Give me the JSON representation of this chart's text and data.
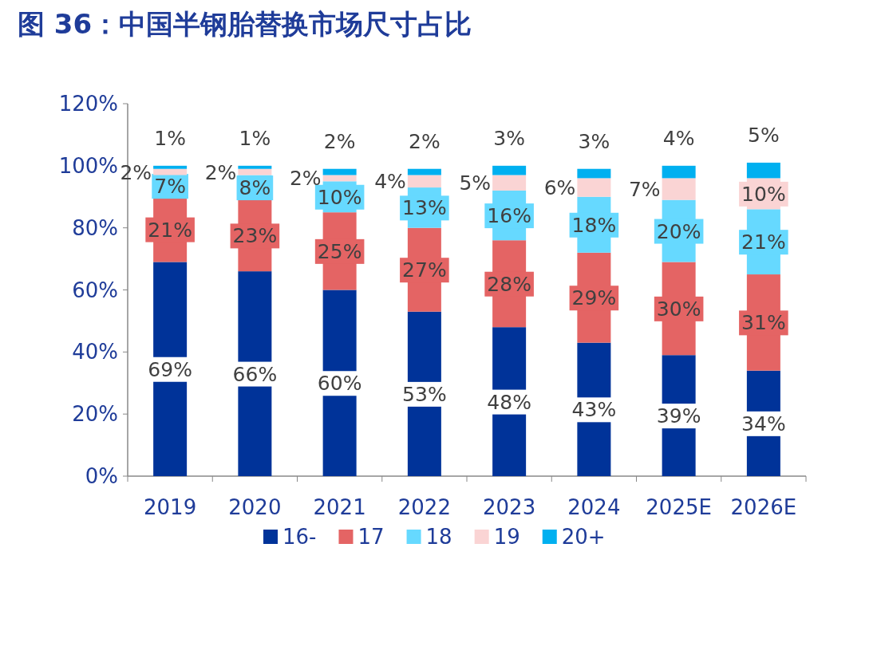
{
  "chart_data": {
    "type": "bar",
    "title": "图 36：中国半钢胎替换市场尺寸占比",
    "stacked": true,
    "legend": "bottom",
    "categories": [
      "2019",
      "2020",
      "2021",
      "2022",
      "2023",
      "2024",
      "2025E",
      "2026E"
    ],
    "ylim": [
      0,
      120
    ],
    "yticks": [
      {
        "value": 0,
        "label": "0%"
      },
      {
        "value": 20,
        "label": "20%"
      },
      {
        "value": 40,
        "label": "40%"
      },
      {
        "value": 60,
        "label": "60%"
      },
      {
        "value": 80,
        "label": "80%"
      },
      {
        "value": 100,
        "label": "100%"
      },
      {
        "value": 120,
        "label": "120%"
      }
    ],
    "series": [
      {
        "name": "16-",
        "color": "#003399",
        "values": [
          69,
          66,
          60,
          53,
          48,
          43,
          39,
          34
        ],
        "value_labels": [
          "69%",
          "66%",
          "60%",
          "53%",
          "48%",
          "43%",
          "39%",
          "34%"
        ]
      },
      {
        "name": "17",
        "color": "#e46464",
        "values": [
          21,
          23,
          25,
          27,
          28,
          29,
          30,
          31
        ],
        "value_labels": [
          "21%",
          "23%",
          "25%",
          "27%",
          "28%",
          "29%",
          "30%",
          "31%"
        ]
      },
      {
        "name": "18",
        "color": "#66d9ff",
        "values": [
          7,
          8,
          10,
          13,
          16,
          18,
          20,
          21
        ],
        "value_labels": [
          "7%",
          "8%",
          "10%",
          "13%",
          "16%",
          "18%",
          "20%",
          "21%"
        ]
      },
      {
        "name": "19",
        "color": "#fad4d4",
        "values": [
          2,
          2,
          2,
          4,
          5,
          6,
          7,
          10
        ],
        "value_labels": [
          "2%",
          "2%",
          "2%",
          "4%",
          "5%",
          "6%",
          "7%",
          "10%"
        ]
      },
      {
        "name": "20+",
        "color": "#00b0f0",
        "values": [
          1,
          1,
          2,
          2,
          3,
          3,
          4,
          5
        ],
        "value_labels": [
          "1%",
          "1%",
          "2%",
          "2%",
          "3%",
          "3%",
          "4%",
          "5%"
        ]
      }
    ]
  }
}
